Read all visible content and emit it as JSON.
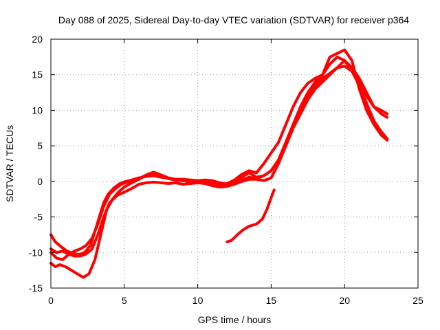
{
  "chart_data": {
    "type": "line",
    "title": "Day 088 of 2025, Sidereal Day-to-day VTEC variation (SDTVAR) for receiver p364",
    "xlabel": "GPS time / hours",
    "ylabel": "SDTVAR / TECUs",
    "xlim": [
      0,
      25
    ],
    "ylim": [
      -15,
      20
    ],
    "xticks": [
      0,
      5,
      10,
      15,
      20,
      25
    ],
    "yticks": [
      -15,
      -10,
      -5,
      0,
      5,
      10,
      15,
      20
    ],
    "grid": true,
    "color": "#ff0000",
    "series": [
      {
        "name": "track-1",
        "x": [
          0,
          0.3,
          0.7,
          1.1,
          1.5,
          1.9,
          2.3,
          2.7,
          3.0,
          3.3,
          3.6,
          3.9,
          4.3,
          4.7,
          5.1,
          5.5,
          6.0,
          6.5,
          7.0,
          7.5,
          8.0,
          8.5,
          9.0,
          9.5,
          10.0,
          10.5,
          11.0,
          11.5,
          12.0,
          12.5,
          13.0,
          13.5,
          14.0,
          14.5,
          15.0,
          15.5,
          16.0,
          16.5,
          17.0,
          17.5,
          18.0,
          18.5,
          19.0,
          19.5,
          20.0,
          20.5,
          21.0,
          21.5,
          22.0,
          22.5,
          22.9
        ],
        "y": [
          -7.5,
          -8.5,
          -9.2,
          -9.8,
          -10.1,
          -10.3,
          -10.0,
          -9.0,
          -7.0,
          -5.0,
          -3.0,
          -1.8,
          -0.9,
          -0.3,
          0.0,
          0.2,
          0.5,
          0.7,
          0.8,
          0.6,
          0.4,
          0.2,
          0.1,
          0.0,
          0.1,
          0.0,
          -0.3,
          -0.5,
          -0.6,
          -0.3,
          0.2,
          0.6,
          0.4,
          0.8,
          1.5,
          3.0,
          5.5,
          8.0,
          10.0,
          12.0,
          13.5,
          14.5,
          15.2,
          16.0,
          16.2,
          15.5,
          14.0,
          12.0,
          10.5,
          10.0,
          9.5
        ]
      },
      {
        "name": "track-2",
        "x": [
          0,
          0.4,
          0.8,
          1.2,
          1.6,
          2.0,
          2.4,
          2.8,
          3.2,
          3.6,
          4.0,
          4.5,
          5.0,
          5.5,
          6.0,
          6.5,
          7.0,
          7.5,
          8.0,
          8.5,
          9.0,
          9.5,
          10.0,
          10.5,
          11.0,
          11.5,
          12.0,
          12.5,
          13.0,
          13.5,
          14.0,
          14.5,
          15.0,
          15.5,
          16.0,
          16.5,
          17.0,
          17.5,
          18.0,
          18.5,
          19.0,
          19.5,
          20.0,
          20.5,
          21.0,
          21.5,
          22.0,
          22.5,
          22.9
        ],
        "y": [
          -9.5,
          -10.0,
          -9.8,
          -10.2,
          -10.5,
          -10.5,
          -10.2,
          -9.5,
          -7.5,
          -5.0,
          -3.0,
          -2.0,
          -1.5,
          -1.0,
          -0.4,
          -0.2,
          -0.1,
          -0.2,
          -0.3,
          -0.2,
          -0.4,
          -0.3,
          -0.2,
          -0.3,
          -0.6,
          -0.8,
          -0.7,
          -0.4,
          0.0,
          0.3,
          0.3,
          0.1,
          0.5,
          2.5,
          5.0,
          7.5,
          9.5,
          11.5,
          13.0,
          14.0,
          15.0,
          16.0,
          17.0,
          16.0,
          14.5,
          12.5,
          10.5,
          9.5,
          9.0
        ]
      },
      {
        "name": "track-3",
        "x": [
          0,
          0.3,
          0.6,
          1.0,
          1.4,
          1.8,
          2.2,
          2.6,
          3.0,
          3.4,
          3.8,
          4.2,
          4.6,
          5.0,
          5.4,
          5.8,
          6.2,
          6.6,
          7.0,
          7.5,
          8.0,
          8.5,
          9.0,
          9.5,
          10.0,
          10.5,
          11.0,
          11.5,
          12.0,
          12.5,
          13.0,
          13.5,
          14.0,
          14.5,
          15.0,
          15.5,
          16.0,
          16.5,
          17.0,
          17.5,
          18.0,
          18.5,
          19.0,
          19.5,
          20.0,
          20.5,
          21.0,
          21.5,
          22.0,
          22.5,
          22.9
        ],
        "y": [
          -11.5,
          -12.0,
          -11.7,
          -12.0,
          -12.5,
          -13.0,
          -13.5,
          -13.0,
          -11.0,
          -7.5,
          -4.0,
          -2.5,
          -1.5,
          -0.8,
          -0.3,
          0.1,
          0.6,
          1.0,
          1.2,
          0.8,
          0.4,
          0.2,
          0.1,
          0.0,
          0.0,
          -0.1,
          -0.3,
          -0.4,
          -0.3,
          0.2,
          1.0,
          1.5,
          1.2,
          2.5,
          4.0,
          5.5,
          8.0,
          10.5,
          12.5,
          13.8,
          14.5,
          15.0,
          17.5,
          18.0,
          18.5,
          17.0,
          13.0,
          10.0,
          8.0,
          6.5,
          5.8
        ]
      },
      {
        "name": "track-4",
        "x": [
          0,
          0.4,
          0.8,
          1.2,
          1.6,
          2.0,
          2.4,
          2.8,
          3.2,
          3.6,
          4.0,
          4.4,
          4.8,
          5.2,
          5.6,
          6.0,
          6.5,
          7.0,
          7.5,
          8.0,
          8.5,
          9.0,
          9.5,
          10.0,
          10.5,
          11.0,
          11.5,
          12.0,
          12.5,
          13.0,
          13.5,
          14.0,
          14.5,
          15.0,
          15.5,
          16.0,
          16.5,
          17.0,
          17.5,
          18.0,
          18.5,
          19.0,
          19.5,
          20.0,
          20.5,
          21.0,
          21.5,
          22.0,
          22.5,
          22.9
        ],
        "y": [
          -10.0,
          -10.8,
          -11.0,
          -10.3,
          -9.8,
          -9.5,
          -9.0,
          -8.0,
          -6.0,
          -3.5,
          -1.8,
          -1.0,
          -0.4,
          -0.1,
          0.0,
          0.3,
          0.9,
          1.3,
          0.9,
          0.5,
          0.3,
          0.3,
          0.2,
          0.1,
          0.2,
          0.1,
          -0.2,
          -0.4,
          0.1,
          0.6,
          1.2,
          0.6,
          0.8,
          1.5,
          3.0,
          5.5,
          8.0,
          10.5,
          12.5,
          14.0,
          15.0,
          16.5,
          17.5,
          17.0,
          15.5,
          13.5,
          11.0,
          8.5,
          7.0,
          6.0
        ]
      },
      {
        "name": "track-5",
        "x": [
          12.0,
          12.3,
          12.7,
          13.1,
          13.5,
          14.0,
          14.4,
          14.7,
          15.0,
          15.2
        ],
        "y": [
          -8.5,
          -8.3,
          -7.5,
          -6.8,
          -6.3,
          -6.0,
          -5.3,
          -4.0,
          -2.3,
          -1.2
        ]
      }
    ]
  }
}
